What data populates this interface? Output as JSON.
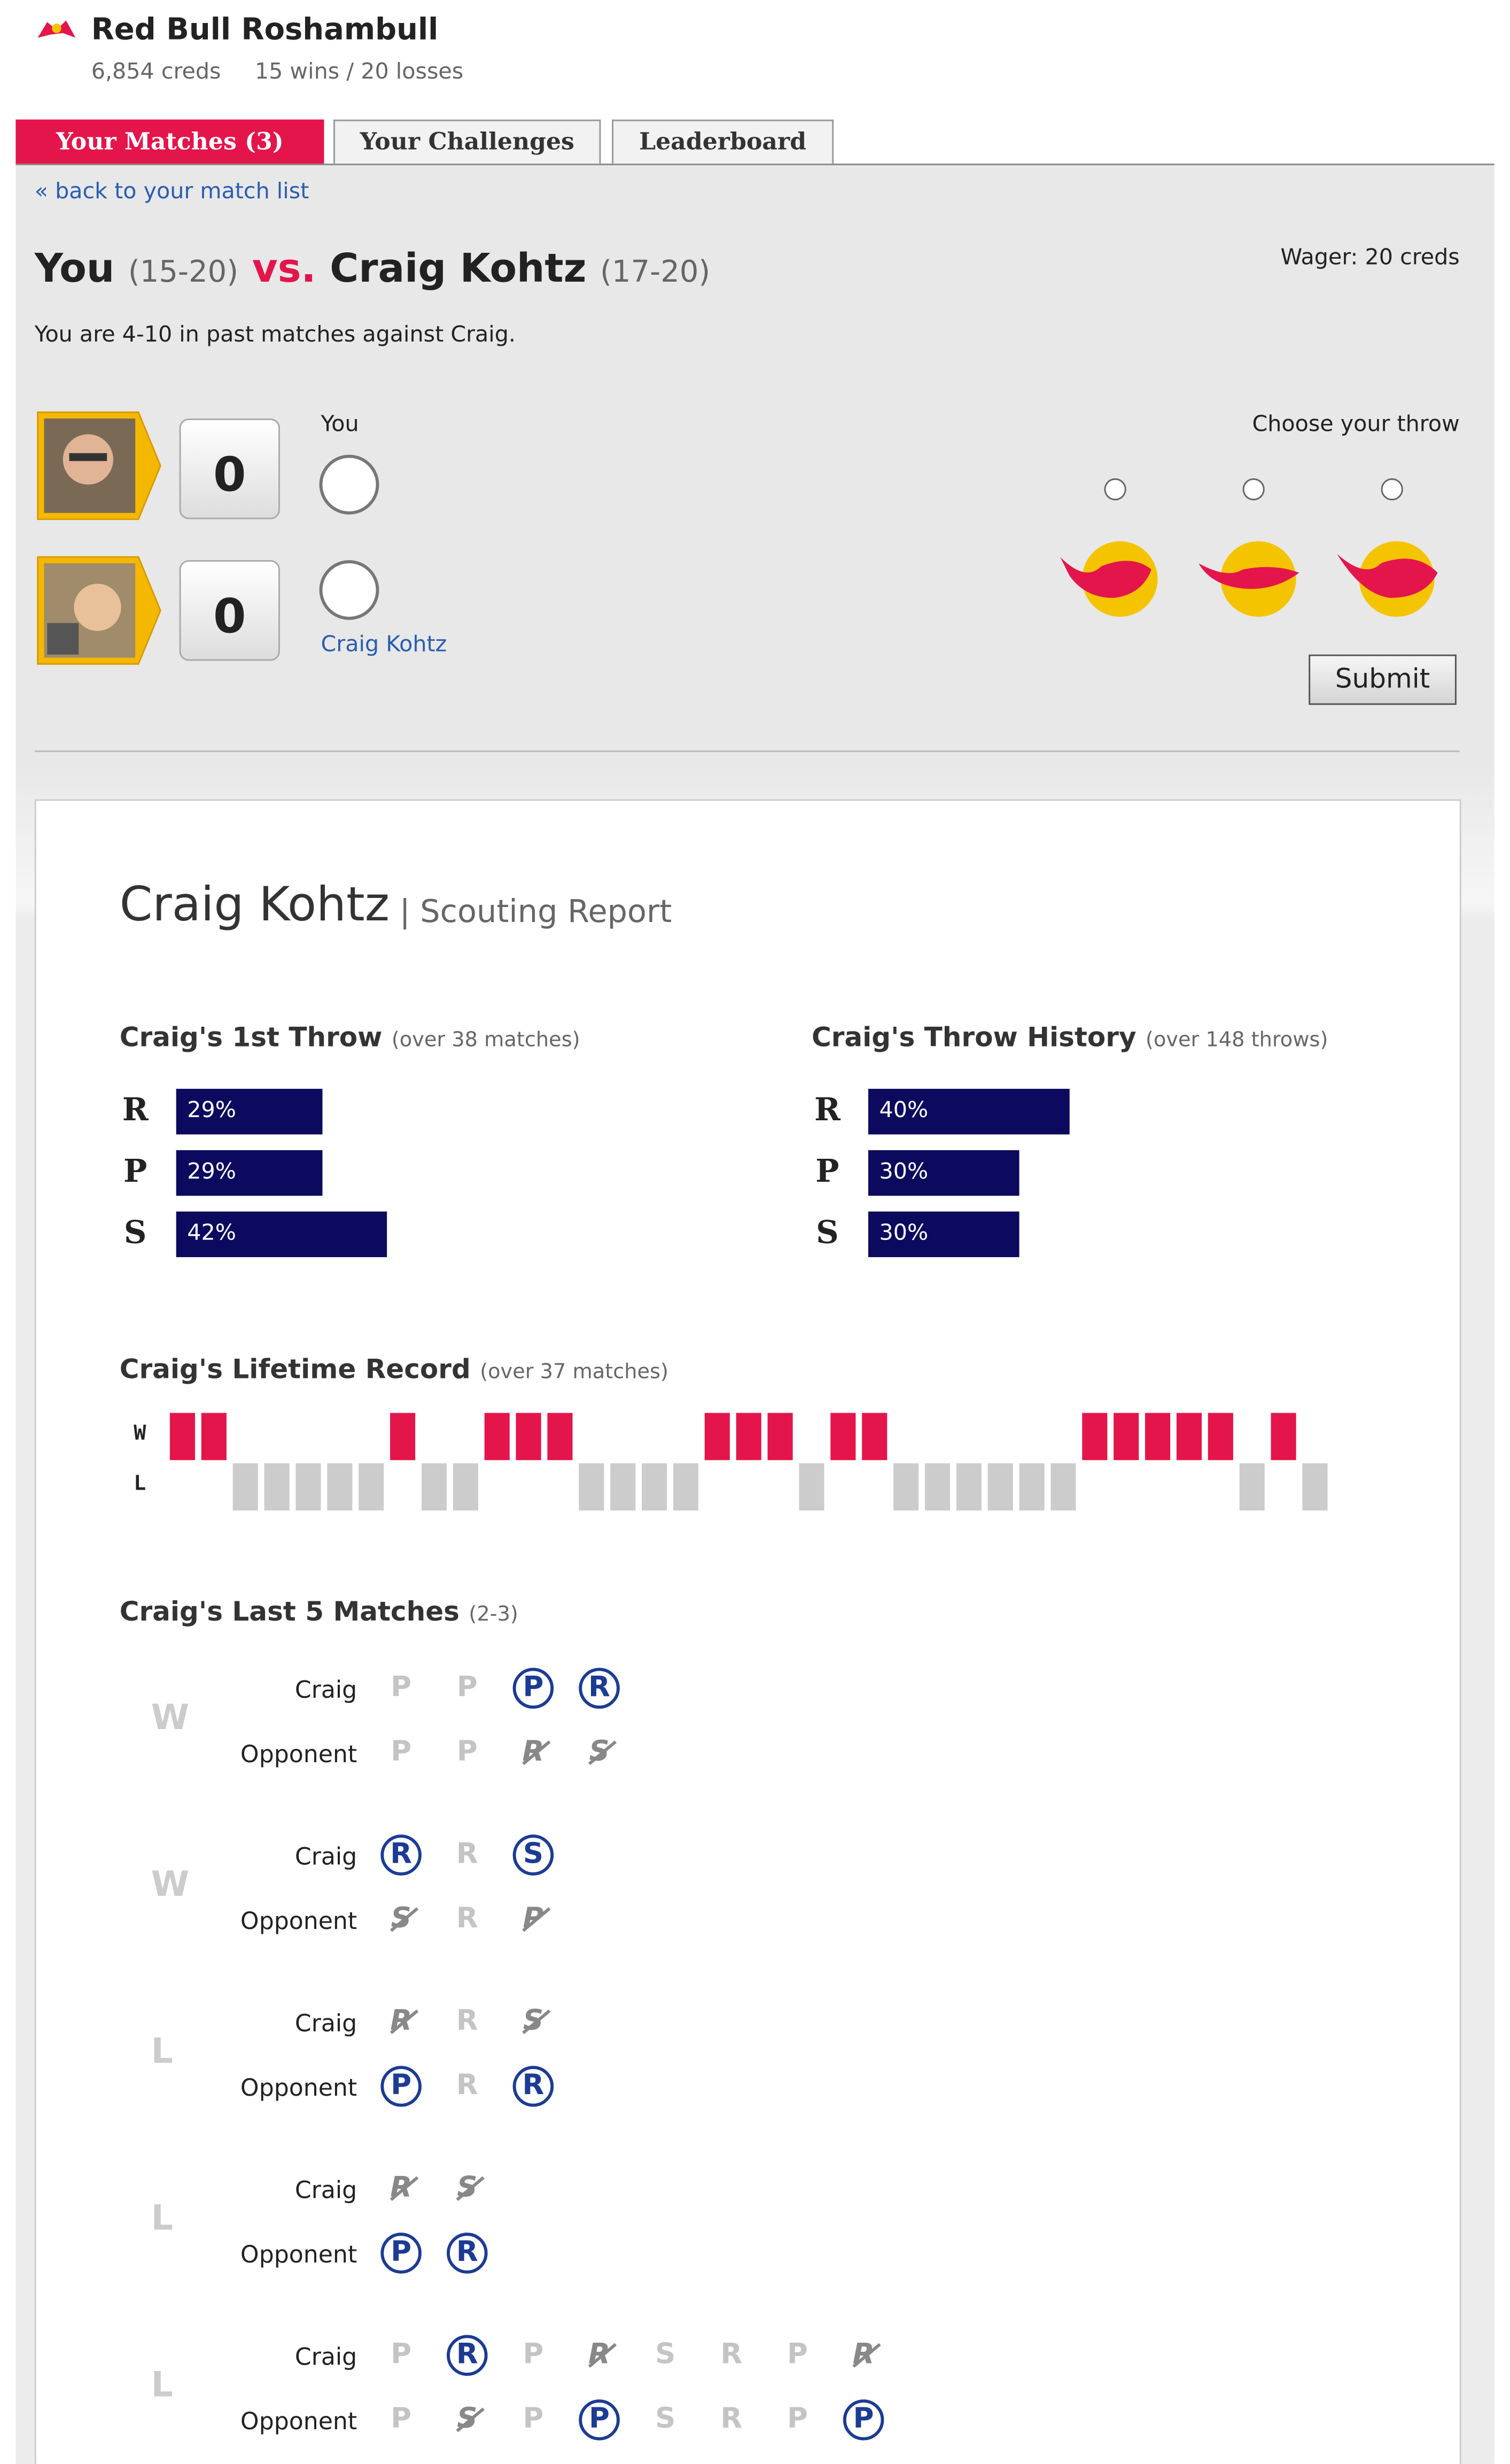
{
  "header": {
    "title": "Red Bull Roshambull",
    "creds": "6,854 creds",
    "record": "15 wins / 20 losses"
  },
  "tabs": [
    "Your Matches (3)",
    "Your Challenges",
    "Leaderboard"
  ],
  "back_link": "« back to your match list",
  "matchup": {
    "you": "You",
    "you_record": "(15-20)",
    "vs": "vs.",
    "opponent": "Craig Kohtz",
    "opponent_record": "(17-20)",
    "wager": "Wager: 20 creds",
    "history": "You are 4-10 in past matches against Craig."
  },
  "players": [
    {
      "score": "0",
      "label": "You"
    },
    {
      "score": "0",
      "label": "Craig Kohtz"
    }
  ],
  "throw_picker": {
    "label": "Choose your throw",
    "submit": "Submit"
  },
  "scouting": {
    "name": "Craig Kohtz",
    "subtitle": "| Scouting Report",
    "first_throw": {
      "title": "Craig's 1st Throw",
      "note": "(over 38 matches)",
      "categories": [
        "R",
        "P",
        "S"
      ],
      "values": [
        29,
        29,
        42
      ],
      "value_labels": [
        "29%",
        "29%",
        "42%"
      ],
      "color": "#0c0a5e"
    },
    "throw_history": {
      "title": "Craig's Throw History",
      "note": "(over 148 throws)",
      "categories": [
        "R",
        "P",
        "S"
      ],
      "values": [
        40,
        30,
        30
      ],
      "value_labels": [
        "40%",
        "30%",
        "30%"
      ],
      "color": "#0c0a5e"
    },
    "lifetime": {
      "title": "Craig's Lifetime Record",
      "note": "(over 37 matches)",
      "rows": [
        "W",
        "L"
      ],
      "win_color": "#e4154b",
      "loss_color": "#cccccc",
      "values": [
        "W",
        "W",
        "L",
        "L",
        "L",
        "L",
        "L",
        "W",
        "L",
        "L",
        "W",
        "W",
        "W",
        "L",
        "L",
        "L",
        "L",
        "W",
        "W",
        "W",
        "L",
        "W",
        "W",
        "L",
        "L",
        "L",
        "L",
        "L",
        "L",
        "W",
        "W",
        "W",
        "W",
        "W",
        "L",
        "W",
        "L"
      ]
    },
    "last5": {
      "title": "Craig's Last 5 Matches",
      "note": "(2-3)",
      "labels": [
        "Craig",
        "Opponent"
      ],
      "matches": [
        {
          "result": "W",
          "craig": [
            {
              "throw": "P",
              "outcome": "tie"
            },
            {
              "throw": "P",
              "outcome": "tie"
            },
            {
              "throw": "P",
              "outcome": "win"
            },
            {
              "throw": "R",
              "outcome": "win"
            }
          ],
          "opponent": [
            {
              "throw": "P",
              "outcome": "tie"
            },
            {
              "throw": "P",
              "outcome": "tie"
            },
            {
              "throw": "R",
              "outcome": "loss"
            },
            {
              "throw": "S",
              "outcome": "loss"
            }
          ]
        },
        {
          "result": "W",
          "craig": [
            {
              "throw": "R",
              "outcome": "win"
            },
            {
              "throw": "R",
              "outcome": "tie"
            },
            {
              "throw": "S",
              "outcome": "win"
            }
          ],
          "opponent": [
            {
              "throw": "S",
              "outcome": "loss"
            },
            {
              "throw": "R",
              "outcome": "tie"
            },
            {
              "throw": "P",
              "outcome": "loss"
            }
          ]
        },
        {
          "result": "L",
          "craig": [
            {
              "throw": "R",
              "outcome": "loss"
            },
            {
              "throw": "R",
              "outcome": "tie"
            },
            {
              "throw": "S",
              "outcome": "loss"
            }
          ],
          "opponent": [
            {
              "throw": "P",
              "outcome": "win"
            },
            {
              "throw": "R",
              "outcome": "tie"
            },
            {
              "throw": "R",
              "outcome": "win"
            }
          ]
        },
        {
          "result": "L",
          "craig": [
            {
              "throw": "R",
              "outcome": "loss"
            },
            {
              "throw": "S",
              "outcome": "loss"
            }
          ],
          "opponent": [
            {
              "throw": "P",
              "outcome": "win"
            },
            {
              "throw": "R",
              "outcome": "win"
            }
          ]
        },
        {
          "result": "L",
          "craig": [
            {
              "throw": "P",
              "outcome": "tie"
            },
            {
              "throw": "R",
              "outcome": "win"
            },
            {
              "throw": "P",
              "outcome": "tie"
            },
            {
              "throw": "R",
              "outcome": "loss"
            },
            {
              "throw": "S",
              "outcome": "tie"
            },
            {
              "throw": "R",
              "outcome": "tie"
            },
            {
              "throw": "P",
              "outcome": "tie"
            },
            {
              "throw": "R",
              "outcome": "loss"
            }
          ],
          "opponent": [
            {
              "throw": "P",
              "outcome": "tie"
            },
            {
              "throw": "S",
              "outcome": "loss"
            },
            {
              "throw": "P",
              "outcome": "tie"
            },
            {
              "throw": "P",
              "outcome": "win"
            },
            {
              "throw": "S",
              "outcome": "tie"
            },
            {
              "throw": "R",
              "outcome": "tie"
            },
            {
              "throw": "P",
              "outcome": "tie"
            },
            {
              "throw": "P",
              "outcome": "win"
            }
          ]
        }
      ]
    }
  }
}
